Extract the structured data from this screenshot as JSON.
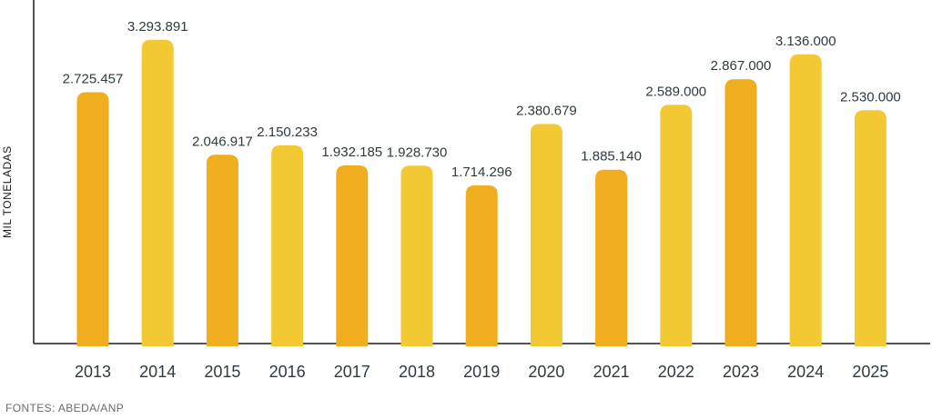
{
  "chart_data": {
    "type": "bar",
    "title": "",
    "xlabel": "",
    "ylabel": "MIL TONELADAS",
    "categories": [
      "2013",
      "2014",
      "2015",
      "2016",
      "2017",
      "2018",
      "2019",
      "2020",
      "2021",
      "2022",
      "2023",
      "2024",
      "2025"
    ],
    "values": [
      2725457,
      3293891,
      2046917,
      2150233,
      1932185,
      1928730,
      1714296,
      2380679,
      1885140,
      2589000,
      2867000,
      3136000,
      2530000
    ],
    "value_labels": [
      "2.725.457",
      "3.293.891",
      "2.046.917",
      "2.150.233",
      "1.932.185",
      "1.928.730",
      "1.714.296",
      "2.380.679",
      "1.885.140",
      "2.589.000",
      "2.867.000",
      "3.136.000",
      "2.530.000"
    ],
    "ylim": [
      0,
      3400000
    ],
    "grid": false,
    "colors": {
      "dark_bar": "#F0AE1E",
      "light_bar": "#F2C933",
      "axis": "#1a1a1a",
      "text": "#2f3a40"
    },
    "bar_shades": [
      "dark",
      "light",
      "dark",
      "light",
      "dark",
      "light",
      "dark",
      "light",
      "dark",
      "light",
      "dark",
      "light",
      "light"
    ]
  },
  "source": "FONTES: ABEDA/ANP"
}
